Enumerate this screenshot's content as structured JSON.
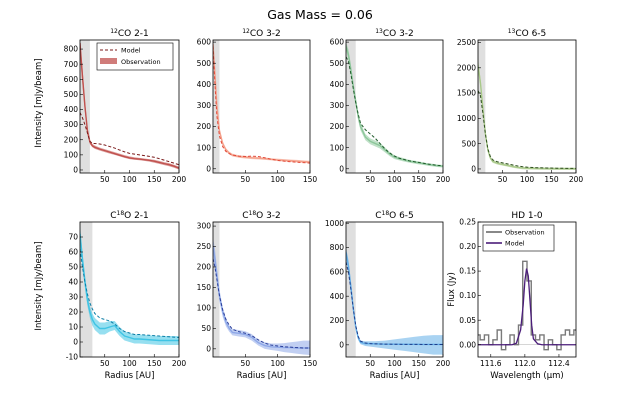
{
  "figure": {
    "title": "Gas Mass = 0.06",
    "ylabel_top": "Intensity [mJy/beam]",
    "ylabel_bottom": "Intensity [mJy/beam]"
  },
  "chart_data": [
    {
      "id": "p1",
      "type": "line",
      "title_iso": "12",
      "title_rest": "CO 2-1",
      "xlabel": "",
      "xlim": [
        0,
        200
      ],
      "ylim": [
        -20,
        860
      ],
      "xticks": [
        50,
        100,
        150,
        200
      ],
      "yticks": [
        0,
        100,
        200,
        300,
        400,
        500,
        600,
        700,
        800
      ],
      "shade_x": [
        0,
        20
      ],
      "colors": {
        "obs": "#c0504d",
        "model": "#7a1a1a"
      },
      "legend": {
        "model": "Model",
        "obs": "Observation"
      },
      "x": [
        0,
        5,
        10,
        15,
        20,
        25,
        30,
        40,
        50,
        60,
        70,
        80,
        90,
        100,
        110,
        120,
        130,
        140,
        150,
        160,
        170,
        180,
        190,
        200
      ],
      "obs": [
        840,
        620,
        420,
        260,
        185,
        160,
        150,
        138,
        128,
        118,
        108,
        98,
        88,
        80,
        75,
        72,
        68,
        64,
        58,
        50,
        42,
        35,
        25,
        12
      ],
      "obs_lo": [
        760,
        560,
        380,
        235,
        170,
        150,
        140,
        128,
        118,
        108,
        100,
        90,
        80,
        72,
        68,
        64,
        60,
        55,
        48,
        40,
        32,
        25,
        15,
        2
      ],
      "obs_hi": [
        860,
        680,
        460,
        285,
        200,
        172,
        162,
        148,
        138,
        128,
        118,
        108,
        98,
        90,
        84,
        80,
        76,
        72,
        68,
        60,
        52,
        45,
        35,
        22
      ],
      "model": [
        380,
        345,
        300,
        245,
        190,
        175,
        175,
        172,
        165,
        155,
        145,
        132,
        120,
        110,
        105,
        100,
        95,
        90,
        84,
        75,
        65,
        55,
        45,
        35
      ]
    },
    {
      "id": "p2",
      "type": "line",
      "title_iso": "12",
      "title_rest": "CO 3-2",
      "xlabel": "",
      "xlim": [
        0,
        150
      ],
      "ylim": [
        -20,
        610
      ],
      "xticks": [
        50,
        100,
        150
      ],
      "yticks": [
        0,
        100,
        200,
        300,
        400,
        500,
        600
      ],
      "shade_x": [
        0,
        10
      ],
      "colors": {
        "obs": "#f4a08a",
        "model": "#e24a3a"
      },
      "x": [
        0,
        3,
        6,
        10,
        15,
        20,
        25,
        30,
        40,
        50,
        60,
        70,
        80,
        90,
        100,
        110,
        120,
        130,
        140,
        150
      ],
      "obs": [
        590,
        450,
        300,
        180,
        120,
        90,
        75,
        65,
        58,
        55,
        52,
        50,
        48,
        45,
        42,
        40,
        38,
        36,
        34,
        32
      ],
      "obs_lo": [
        560,
        420,
        280,
        165,
        110,
        82,
        68,
        58,
        52,
        48,
        46,
        44,
        42,
        40,
        36,
        34,
        32,
        30,
        28,
        26
      ],
      "obs_hi": [
        610,
        480,
        320,
        195,
        130,
        98,
        82,
        72,
        64,
        62,
        58,
        56,
        54,
        50,
        48,
        46,
        44,
        42,
        40,
        38
      ],
      "model": [
        580,
        400,
        250,
        155,
        105,
        82,
        72,
        65,
        60,
        58,
        60,
        58,
        52,
        45,
        40,
        36,
        33,
        31,
        29,
        27
      ]
    },
    {
      "id": "p3",
      "type": "line",
      "title_iso": "13",
      "title_rest": "CO 3-2",
      "xlabel": "",
      "xlim": [
        0,
        200
      ],
      "ylim": [
        -20,
        610
      ],
      "xticks": [
        50,
        100,
        150,
        200
      ],
      "yticks": [
        0,
        100,
        200,
        300,
        400,
        500,
        600
      ],
      "shade_x": [
        0,
        20
      ],
      "colors": {
        "obs": "#8cc79a",
        "model": "#1e5a2a"
      },
      "x": [
        0,
        5,
        10,
        15,
        20,
        25,
        30,
        40,
        50,
        60,
        70,
        80,
        90,
        100,
        110,
        120,
        130,
        140,
        150,
        160,
        170,
        180,
        190,
        200
      ],
      "obs": [
        580,
        540,
        470,
        390,
        320,
        250,
        200,
        150,
        130,
        120,
        110,
        90,
        70,
        55,
        48,
        42,
        36,
        32,
        28,
        24,
        20,
        17,
        14,
        12
      ],
      "obs_lo": [
        560,
        515,
        445,
        365,
        298,
        230,
        182,
        135,
        116,
        106,
        96,
        78,
        60,
        46,
        40,
        34,
        29,
        25,
        21,
        18,
        14,
        11,
        8,
        6
      ],
      "obs_hi": [
        600,
        565,
        495,
        415,
        342,
        270,
        218,
        165,
        144,
        134,
        124,
        102,
        80,
        64,
        56,
        50,
        43,
        39,
        35,
        30,
        26,
        23,
        20,
        18
      ],
      "model": [
        530,
        510,
        450,
        380,
        315,
        260,
        215,
        185,
        165,
        145,
        120,
        95,
        75,
        60,
        50,
        44,
        38,
        34,
        30,
        26,
        22,
        19,
        16,
        14
      ]
    },
    {
      "id": "p4",
      "type": "line",
      "title_iso": "13",
      "title_rest": "CO 6-5",
      "xlabel": "",
      "xlim": [
        0,
        200
      ],
      "ylim": [
        -80,
        2550
      ],
      "xticks": [
        50,
        100,
        150,
        200
      ],
      "yticks": [
        0,
        500,
        1000,
        1500,
        2000,
        2500
      ],
      "shade_x": [
        0,
        15
      ],
      "colors": {
        "obs": "#a9c98a",
        "model": "#2f4f1f"
      },
      "x": [
        0,
        5,
        10,
        15,
        20,
        25,
        30,
        40,
        50,
        60,
        70,
        80,
        90,
        100,
        120,
        140,
        160,
        180,
        200
      ],
      "obs": [
        2050,
        1700,
        1200,
        700,
        380,
        220,
        150,
        110,
        90,
        70,
        50,
        30,
        20,
        15,
        10,
        8,
        6,
        5,
        4
      ],
      "obs_lo": [
        1980,
        1620,
        1130,
        650,
        340,
        190,
        120,
        85,
        65,
        45,
        25,
        8,
        -5,
        -10,
        -15,
        -18,
        -20,
        -20,
        -20
      ],
      "obs_hi": [
        2200,
        1800,
        1280,
        760,
        420,
        250,
        180,
        140,
        118,
        95,
        72,
        52,
        42,
        36,
        32,
        30,
        28,
        26,
        26
      ],
      "model": [
        1550,
        1450,
        1100,
        700,
        400,
        250,
        180,
        140,
        120,
        100,
        80,
        60,
        45,
        35,
        25,
        20,
        15,
        12,
        10
      ]
    },
    {
      "id": "p5",
      "type": "line",
      "title_iso": "18",
      "title_pre": "C",
      "title_rest": "O 2-1",
      "xlabel": "Radius [AU]",
      "xlim": [
        0,
        200
      ],
      "ylim": [
        -10,
        80
      ],
      "xticks": [
        50,
        100,
        150,
        200
      ],
      "yticks": [
        -10,
        0,
        10,
        20,
        30,
        40,
        50,
        60,
        70
      ],
      "shade_x": [
        0,
        25
      ],
      "colors": {
        "obs": "#3fc4e4",
        "model": "#0b7ea6"
      },
      "x": [
        0,
        5,
        10,
        15,
        20,
        25,
        30,
        40,
        50,
        60,
        70,
        80,
        90,
        100,
        110,
        120,
        140,
        160,
        180,
        200
      ],
      "obs": [
        72,
        55,
        40,
        28,
        20,
        15,
        12,
        9,
        9,
        10,
        11,
        7,
        4,
        3,
        2,
        2,
        1.5,
        1,
        1,
        1
      ],
      "obs_lo": [
        66,
        50,
        36,
        24,
        16,
        11,
        8,
        5,
        5,
        7,
        8,
        4,
        1,
        0,
        -1,
        -1,
        -1.5,
        -2,
        -2,
        -2
      ],
      "obs_hi": [
        78,
        60,
        45,
        32,
        24,
        19,
        16,
        13,
        13,
        14,
        14,
        10,
        7,
        6,
        5,
        5,
        4.5,
        4,
        4,
        4
      ],
      "model": [
        62,
        50,
        40,
        32,
        26,
        22,
        19,
        16,
        15,
        14,
        12,
        9,
        7,
        6,
        5,
        5,
        4.5,
        4,
        3.5,
        3
      ]
    },
    {
      "id": "p6",
      "type": "line",
      "title_iso": "18",
      "title_pre": "C",
      "title_rest": "O 3-2",
      "xlabel": "Radius [AU]",
      "xlim": [
        0,
        150
      ],
      "ylim": [
        -20,
        310
      ],
      "xticks": [
        50,
        100,
        150
      ],
      "yticks": [
        0,
        50,
        100,
        150,
        200,
        250,
        300
      ],
      "shade_x": [
        0,
        10
      ],
      "colors": {
        "obs": "#8ea8e8",
        "model": "#2a3e9a"
      },
      "x": [
        0,
        3,
        6,
        10,
        15,
        20,
        25,
        30,
        40,
        50,
        60,
        70,
        80,
        90,
        100,
        110,
        120,
        130,
        140,
        150
      ],
      "obs": [
        250,
        220,
        180,
        130,
        90,
        65,
        50,
        40,
        38,
        35,
        28,
        15,
        8,
        5,
        4,
        3,
        3,
        2,
        2,
        2
      ],
      "obs_lo": [
        225,
        195,
        160,
        115,
        78,
        55,
        42,
        33,
        30,
        28,
        20,
        8,
        0,
        -3,
        -5,
        -8,
        -10,
        -12,
        -14,
        -15
      ],
      "obs_hi": [
        270,
        245,
        200,
        145,
        102,
        75,
        58,
        48,
        46,
        43,
        36,
        22,
        16,
        13,
        13,
        14,
        16,
        18,
        20,
        20
      ],
      "model": [
        220,
        200,
        170,
        130,
        95,
        72,
        58,
        48,
        42,
        38,
        32,
        22,
        14,
        9,
        7,
        5,
        4,
        3,
        2,
        2
      ]
    },
    {
      "id": "p7",
      "type": "line",
      "title_iso": "18",
      "title_pre": "C",
      "title_rest": "O 6-5",
      "xlabel": "Radius [AU]",
      "xlim": [
        0,
        200
      ],
      "ylim": [
        -100,
        1010
      ],
      "xticks": [
        50,
        100,
        150,
        200
      ],
      "yticks": [
        0,
        200,
        400,
        600,
        800,
        1000
      ],
      "shade_x": [
        0,
        20
      ],
      "colors": {
        "obs": "#62aee8",
        "model": "#1e3c8a"
      },
      "x": [
        0,
        5,
        10,
        15,
        20,
        25,
        30,
        40,
        50,
        60,
        80,
        100,
        120,
        140,
        160,
        180,
        200
      ],
      "obs": [
        760,
        650,
        480,
        300,
        150,
        60,
        20,
        10,
        10,
        8,
        5,
        5,
        4,
        4,
        3,
        3,
        3
      ],
      "obs_lo": [
        700,
        590,
        420,
        260,
        120,
        40,
        5,
        -10,
        -15,
        -20,
        -30,
        -40,
        -50,
        -60,
        -70,
        -80,
        -80
      ],
      "obs_hi": [
        800,
        700,
        520,
        340,
        180,
        80,
        35,
        30,
        30,
        30,
        35,
        45,
        55,
        65,
        75,
        80,
        80
      ],
      "model": [
        680,
        600,
        460,
        300,
        160,
        70,
        30,
        15,
        10,
        8,
        6,
        5,
        4,
        4,
        3,
        3,
        3
      ]
    },
    {
      "id": "p8",
      "type": "line",
      "title": "HD 1-0",
      "xlabel": "Wavelength (μm)",
      "ylabel": "Flux (Jy)",
      "xlim": [
        111.45,
        112.6
      ],
      "ylim": [
        -0.025,
        0.25
      ],
      "xticks": [
        111.6,
        112.0,
        112.4
      ],
      "xticklabels": [
        "111.6",
        "112.0",
        "112.4"
      ],
      "yticks": [
        0.0,
        0.05,
        0.1,
        0.15,
        0.2,
        0.25
      ],
      "yticklabels": [
        "0.00",
        "0.05",
        "0.10",
        "0.15",
        "0.20",
        "0.25"
      ],
      "colors": {
        "obs": "#7a7a7a",
        "model": "#4b1d7a"
      },
      "legend": {
        "obs": "Observation",
        "model": "Model"
      },
      "obs_steps_x": [
        111.45,
        111.5,
        111.55,
        111.6,
        111.65,
        111.7,
        111.75,
        111.8,
        111.85,
        111.9,
        111.95,
        112.0,
        112.05,
        112.1,
        112.15,
        112.2,
        112.25,
        112.3,
        112.35,
        112.4,
        112.45,
        112.5,
        112.55,
        112.6
      ],
      "obs_steps_y": [
        0.02,
        0.01,
        0.02,
        0.0,
        0.01,
        0.03,
        -0.01,
        0.0,
        0.02,
        0.0,
        0.04,
        0.17,
        0.13,
        0.02,
        0.01,
        0.02,
        -0.01,
        0.01,
        0.0,
        -0.01,
        0.02,
        0.03,
        0.02,
        0.03
      ],
      "model_x": [
        111.45,
        111.85,
        111.9,
        111.95,
        111.98,
        112.0,
        112.02,
        112.04,
        112.06,
        112.08,
        112.1,
        112.15,
        112.2,
        112.6
      ],
      "model_y": [
        0.0,
        0.0,
        0.003,
        0.03,
        0.08,
        0.13,
        0.155,
        0.14,
        0.09,
        0.04,
        0.012,
        0.002,
        0.0,
        0.0
      ]
    }
  ]
}
